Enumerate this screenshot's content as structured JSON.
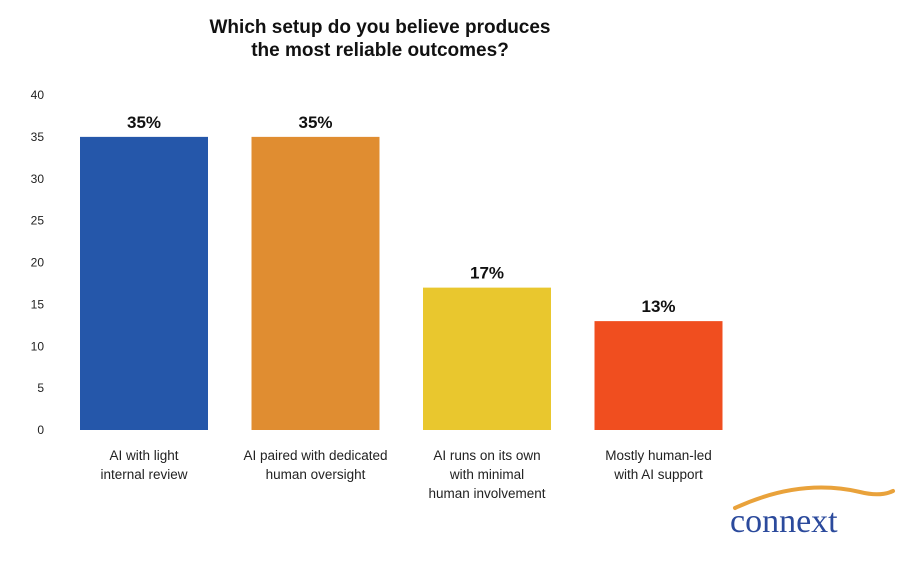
{
  "chart_data": {
    "type": "bar",
    "title_lines": [
      "Which setup do you believe produces",
      "the most reliable outcomes?"
    ],
    "categories": [
      [
        "AI with light",
        "internal review"
      ],
      [
        "AI paired with dedicated",
        "human oversight"
      ],
      [
        "AI runs on its own",
        "with minimal",
        "human involvement"
      ],
      [
        "Mostly human-led",
        "with AI support"
      ]
    ],
    "values": [
      35,
      35,
      17,
      13
    ],
    "data_labels": [
      "35%",
      "35%",
      "17%",
      "13%"
    ],
    "colors": [
      "#2557aa",
      "#e08d31",
      "#e9c72e",
      "#f04e1f"
    ],
    "ylim": [
      0,
      40
    ],
    "yticks": [
      0,
      5,
      10,
      15,
      20,
      25,
      30,
      35,
      40
    ],
    "xlabel": "",
    "ylabel": "",
    "grid": false,
    "legend": "none"
  },
  "logo": {
    "text": "connext",
    "text_color": "#2b4a9c",
    "swoosh_color": "#e9a23b"
  }
}
